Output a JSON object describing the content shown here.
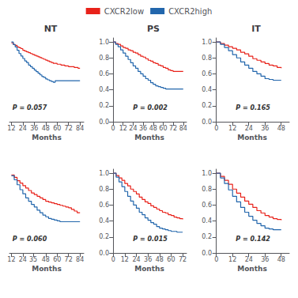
{
  "chart_data": [
    {
      "type": "step",
      "title": "NT",
      "xlabel": "Months",
      "annotation": "P = 0.057",
      "legend": "top",
      "tick_labels": "x",
      "x": [
        12,
        14,
        16,
        18,
        20,
        22,
        24,
        26,
        28,
        30,
        32,
        34,
        36,
        38,
        40,
        42,
        44,
        46,
        48,
        50,
        52,
        54,
        56,
        58,
        60,
        62,
        64,
        66,
        68,
        70,
        72,
        74,
        76,
        78,
        80,
        82,
        84
      ],
      "series": [
        {
          "name": "CXCR2low",
          "color": "#e8221a",
          "values": [
            0.96,
            0.94,
            0.93,
            0.91,
            0.9,
            0.89,
            0.87,
            0.86,
            0.85,
            0.84,
            0.83,
            0.82,
            0.81,
            0.8,
            0.79,
            0.78,
            0.77,
            0.76,
            0.75,
            0.74,
            0.73,
            0.72,
            0.71,
            0.71,
            0.7,
            0.7,
            0.69,
            0.69,
            0.68,
            0.68,
            0.67,
            0.67,
            0.67,
            0.66,
            0.66,
            0.65,
            0.65
          ]
        },
        {
          "name": "CXCR2high",
          "color": "#2266ac",
          "values": [
            0.97,
            0.94,
            0.91,
            0.87,
            0.83,
            0.8,
            0.77,
            0.74,
            0.72,
            0.69,
            0.67,
            0.65,
            0.63,
            0.61,
            0.59,
            0.57,
            0.55,
            0.54,
            0.52,
            0.51,
            0.5,
            0.49,
            0.48,
            0.5,
            0.5,
            0.5,
            0.5,
            0.5,
            0.5,
            0.5,
            0.5,
            0.5,
            0.5,
            0.5,
            0.5,
            0.5,
            0.5
          ]
        }
      ],
      "xlim": [
        10,
        88
      ],
      "xticks": [
        12,
        24,
        36,
        48,
        60,
        72,
        84
      ],
      "ylim": [
        0.0,
        1.02
      ],
      "yticks": []
    },
    {
      "type": "step",
      "title": "PS",
      "xlabel": "Months",
      "annotation": "P = 0.002",
      "x": [
        0,
        3,
        6,
        9,
        12,
        15,
        18,
        21,
        24,
        27,
        30,
        33,
        36,
        39,
        42,
        45,
        48,
        51,
        54,
        57,
        60,
        63,
        66,
        69,
        72,
        75,
        78,
        81,
        84
      ],
      "series": [
        {
          "name": "CXCR2low",
          "color": "#e8221a",
          "values": [
            1.0,
            0.98,
            0.97,
            0.95,
            0.93,
            0.92,
            0.9,
            0.89,
            0.87,
            0.86,
            0.84,
            0.82,
            0.81,
            0.79,
            0.77,
            0.76,
            0.74,
            0.73,
            0.71,
            0.7,
            0.68,
            0.67,
            0.65,
            0.64,
            0.63,
            0.63,
            0.63,
            0.63,
            0.63
          ]
        },
        {
          "name": "CXCR2high",
          "color": "#2266ac",
          "values": [
            1.0,
            0.97,
            0.94,
            0.9,
            0.86,
            0.82,
            0.78,
            0.74,
            0.7,
            0.67,
            0.63,
            0.6,
            0.57,
            0.54,
            0.52,
            0.49,
            0.47,
            0.45,
            0.44,
            0.43,
            0.42,
            0.41,
            0.41,
            0.41,
            0.41,
            0.41,
            0.41,
            0.41,
            0.41
          ]
        }
      ],
      "xlim": [
        -1,
        88
      ],
      "xticks": [
        0,
        12,
        24,
        36,
        48,
        60,
        72,
        84
      ],
      "ylim": [
        0.0,
        1.05
      ],
      "yticks": [
        {
          "value": 0.0,
          "label": "0.0"
        },
        0.2,
        0.4,
        0.6,
        0.8,
        {
          "value": 1.0,
          "label": "1.0"
        }
      ]
    },
    {
      "type": "step",
      "title": "IT",
      "xlabel": "Months",
      "annotation": "P = 0.165",
      "x": [
        0,
        3,
        6,
        9,
        12,
        15,
        18,
        21,
        24,
        27,
        30,
        33,
        36,
        39,
        42,
        45,
        48
      ],
      "series": [
        {
          "name": "CXCR2low",
          "color": "#e8221a",
          "values": [
            1.0,
            0.98,
            0.96,
            0.94,
            0.92,
            0.9,
            0.87,
            0.85,
            0.82,
            0.79,
            0.77,
            0.75,
            0.73,
            0.71,
            0.7,
            0.68,
            0.67
          ]
        },
        {
          "name": "CXCR2high",
          "color": "#2266ac",
          "values": [
            1.0,
            0.97,
            0.93,
            0.89,
            0.84,
            0.8,
            0.75,
            0.71,
            0.67,
            0.63,
            0.6,
            0.57,
            0.54,
            0.53,
            0.52,
            0.52,
            0.52
          ]
        }
      ],
      "xlim": [
        -1,
        54
      ],
      "xticks": [
        0,
        12,
        24,
        36,
        48
      ],
      "ylim": [
        0.0,
        1.05
      ],
      "yticks": [
        {
          "value": 0.0,
          "label": "0.0"
        },
        0.2,
        0.4,
        0.6,
        0.8,
        {
          "value": 1.0,
          "label": "1.0"
        }
      ]
    },
    {
      "type": "step",
      "xlabel": "Months",
      "annotation": "P = 0.060",
      "tick_labels": "x",
      "x": [
        12,
        15,
        18,
        21,
        24,
        27,
        30,
        33,
        36,
        39,
        42,
        45,
        48,
        51,
        54,
        57,
        60,
        63,
        66,
        69,
        72,
        75,
        78,
        81,
        84
      ],
      "series": [
        {
          "name": "CXCR2low",
          "color": "#e8221a",
          "values": [
            0.95,
            0.92,
            0.88,
            0.85,
            0.82,
            0.79,
            0.76,
            0.73,
            0.71,
            0.69,
            0.67,
            0.65,
            0.63,
            0.62,
            0.61,
            0.6,
            0.59,
            0.58,
            0.57,
            0.56,
            0.55,
            0.53,
            0.51,
            0.49,
            0.49
          ]
        },
        {
          "name": "CXCR2high",
          "color": "#2266ac",
          "values": [
            0.94,
            0.89,
            0.83,
            0.77,
            0.72,
            0.67,
            0.63,
            0.59,
            0.56,
            0.52,
            0.49,
            0.46,
            0.44,
            0.42,
            0.41,
            0.4,
            0.39,
            0.38,
            0.38,
            0.38,
            0.38,
            0.38,
            0.38,
            0.38,
            0.38
          ]
        }
      ],
      "xlim": [
        10,
        88
      ],
      "xticks": [
        12,
        24,
        35,
        48,
        60,
        72,
        84
      ],
      "ylim": [
        0.0,
        1.02
      ],
      "yticks": []
    },
    {
      "type": "step",
      "xlabel": "Months",
      "annotation": "P = 0.015",
      "x": [
        0,
        3,
        6,
        9,
        12,
        15,
        18,
        21,
        24,
        27,
        30,
        33,
        36,
        39,
        42,
        45,
        48,
        51,
        54,
        57,
        60,
        63,
        66,
        69,
        72
      ],
      "series": [
        {
          "name": "CXCR2low",
          "color": "#e8221a",
          "values": [
            1.0,
            0.97,
            0.94,
            0.91,
            0.87,
            0.84,
            0.8,
            0.77,
            0.74,
            0.7,
            0.67,
            0.64,
            0.62,
            0.59,
            0.57,
            0.55,
            0.53,
            0.51,
            0.5,
            0.48,
            0.47,
            0.45,
            0.44,
            0.43,
            0.42
          ]
        },
        {
          "name": "CXCR2high",
          "color": "#2266ac",
          "values": [
            1.0,
            0.95,
            0.89,
            0.83,
            0.77,
            0.71,
            0.65,
            0.6,
            0.56,
            0.51,
            0.48,
            0.44,
            0.41,
            0.38,
            0.36,
            0.33,
            0.31,
            0.3,
            0.29,
            0.28,
            0.27,
            0.27,
            0.26,
            0.26,
            0.26
          ]
        }
      ],
      "xlim": [
        -1,
        76
      ],
      "xticks": [
        0,
        12,
        24,
        36,
        48,
        60,
        72
      ],
      "ylim": [
        0.0,
        1.05
      ],
      "yticks": [
        {
          "value": 0.0,
          "label": "0.0"
        },
        0.2,
        0.4,
        0.6,
        0.8,
        {
          "value": 1.0,
          "label": "1.0"
        }
      ]
    },
    {
      "type": "step",
      "xlabel": "Months",
      "annotation": "P = 0.142",
      "x": [
        0,
        3,
        6,
        9,
        12,
        15,
        18,
        21,
        24,
        27,
        30,
        33,
        36,
        39,
        42,
        45,
        48
      ],
      "series": [
        {
          "name": "CXCR2low",
          "color": "#e8221a",
          "values": [
            1.0,
            0.96,
            0.91,
            0.86,
            0.8,
            0.75,
            0.7,
            0.65,
            0.61,
            0.57,
            0.53,
            0.5,
            0.47,
            0.45,
            0.43,
            0.42,
            0.41
          ]
        },
        {
          "name": "CXCR2high",
          "color": "#2266ac",
          "values": [
            1.0,
            0.94,
            0.87,
            0.79,
            0.71,
            0.64,
            0.57,
            0.51,
            0.46,
            0.41,
            0.37,
            0.34,
            0.31,
            0.3,
            0.29,
            0.29,
            0.29
          ]
        }
      ],
      "xlim": [
        -1,
        54
      ],
      "xticks": [
        0,
        12,
        24,
        36,
        48
      ],
      "ylim": [
        0.0,
        1.05
      ],
      "yticks": [
        {
          "value": 0.0,
          "label": "0.0"
        },
        0.2,
        0.4,
        0.6,
        0.8,
        {
          "value": 1.0,
          "label": "1.0"
        }
      ]
    }
  ]
}
